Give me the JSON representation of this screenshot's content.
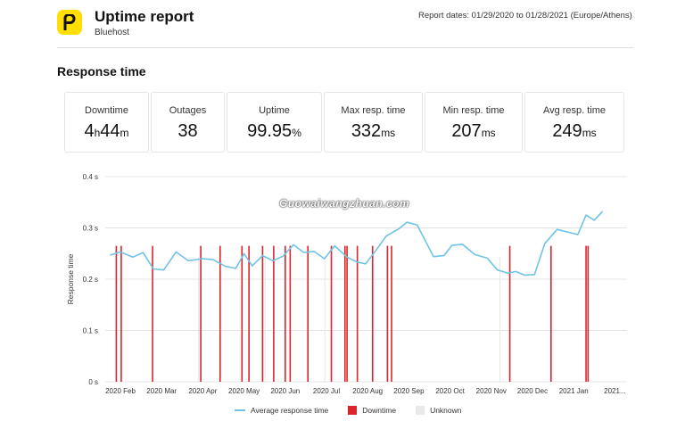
{
  "header": {
    "logo_letter": "p",
    "title": "Uptime report",
    "subtitle": "Bluehost",
    "report_dates": "Report dates: 01/29/2020 to 01/28/2021 (Europe/Athens)"
  },
  "section_title": "Response time",
  "stats": [
    {
      "label": "Downtime",
      "value_html": "4<small>h</small>44<small>m</small>"
    },
    {
      "label": "Outages",
      "value_html": "38"
    },
    {
      "label": "Uptime",
      "value_html": "99.95<small>%</small>"
    },
    {
      "label": "Max resp. time",
      "value_html": "332<small>ms</small>"
    },
    {
      "label": "Min resp. time",
      "value_html": "207<small>ms</small>"
    },
    {
      "label": "Avg resp. time",
      "value_html": "249<small>ms</small>"
    }
  ],
  "watermark": "Guowaiwangzhuan.com",
  "colors": {
    "line": "#6ec3e6",
    "downtime": "#d9262b",
    "unknown": "#e8e8e8",
    "grid": "#e4e4e4"
  },
  "legend": {
    "line": "Average response time",
    "downtime": "Downtime",
    "unknown": "Unknown"
  },
  "chart_data": {
    "type": "line",
    "ylabel": "Response time",
    "ylim": [
      0,
      0.4
    ],
    "yticks": [
      0,
      0.1,
      0.2,
      0.3,
      0.4
    ],
    "ytick_labels": [
      "0 s",
      "0.1 s",
      "0.2 s",
      "0.3 s",
      "0.4 s"
    ],
    "xlim": [
      0,
      12
    ],
    "xticks": [
      0,
      1,
      2,
      3,
      4,
      5,
      6,
      7,
      8,
      9,
      10,
      11,
      12
    ],
    "xtick_labels": [
      "2020 Feb",
      "2020 Mar",
      "2020 Apr",
      "2020 May",
      "2020 Jun",
      "2020 Jul",
      "2020 Aug",
      "2020 Sep",
      "2020 Oct",
      "2020 Nov",
      "2020 Dec",
      "2021 Jan",
      "2021..."
    ],
    "series": [
      {
        "name": "Average response time",
        "x": [
          -0.25,
          0.0,
          0.3,
          0.55,
          0.8,
          1.05,
          1.35,
          1.65,
          2.0,
          2.25,
          2.55,
          2.8,
          3.0,
          3.2,
          3.45,
          3.7,
          3.95,
          4.2,
          4.45,
          4.7,
          4.95,
          5.2,
          5.5,
          5.75,
          5.95,
          6.2,
          6.45,
          6.75,
          6.95,
          7.2,
          7.6,
          7.85,
          8.05,
          8.3,
          8.6,
          8.9,
          9.15,
          9.4,
          9.6,
          9.8,
          10.05,
          10.3,
          10.6,
          10.85,
          11.1,
          11.3,
          11.5,
          11.7
        ],
        "y": [
          0.247,
          0.253,
          0.243,
          0.252,
          0.22,
          0.218,
          0.253,
          0.236,
          0.24,
          0.238,
          0.225,
          0.221,
          0.25,
          0.226,
          0.246,
          0.236,
          0.245,
          0.267,
          0.252,
          0.254,
          0.24,
          0.265,
          0.243,
          0.233,
          0.23,
          0.256,
          0.284,
          0.298,
          0.311,
          0.306,
          0.244,
          0.246,
          0.266,
          0.268,
          0.248,
          0.241,
          0.218,
          0.212,
          0.215,
          0.208,
          0.209,
          0.27,
          0.297,
          0.292,
          0.287,
          0.325,
          0.315,
          0.332
        ]
      }
    ],
    "downtime_x": [
      -0.1,
      0.02,
      0.78,
      1.95,
      2.42,
      2.95,
      3.12,
      3.45,
      3.72,
      4.0,
      4.12,
      4.55,
      5.12,
      5.45,
      5.5,
      5.75,
      6.12,
      6.48,
      6.58,
      9.45,
      10.45,
      11.3,
      11.35
    ],
    "unknown_x": [
      1.88,
      3.5,
      4.95,
      9.2
    ]
  }
}
